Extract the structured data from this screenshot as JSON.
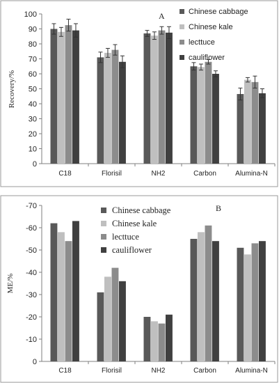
{
  "chart_data": [
    {
      "type": "bar",
      "panel_label": "A",
      "ylabel": "Recovery/%",
      "ylim": [
        0,
        100
      ],
      "yticks": [
        0,
        10,
        20,
        30,
        40,
        50,
        60,
        70,
        80,
        90,
        100
      ],
      "categories": [
        "C18",
        "Florisil",
        "NH2",
        "Carbon",
        "Alumina-N"
      ],
      "legend_position": "top-right",
      "error_bars": true,
      "series": [
        {
          "name": "Chinese cabbage",
          "color": "#595959",
          "values": [
            90,
            71,
            87,
            65,
            46.5
          ],
          "errors": [
            3.5,
            3.5,
            2,
            2.5,
            4
          ]
        },
        {
          "name": "Chinese kale",
          "color": "#bfbfbf",
          "values": [
            88,
            74,
            85.5,
            64.5,
            56
          ],
          "errors": [
            3,
            3,
            2.5,
            2,
            1.5
          ]
        },
        {
          "name": "lecttuce",
          "color": "#8c8c8c",
          "values": [
            92.5,
            76,
            89,
            68,
            54.5
          ],
          "errors": [
            4,
            3.5,
            2.5,
            1.5,
            4
          ]
        },
        {
          "name": "cauliflower",
          "color": "#404040",
          "values": [
            89,
            68,
            87.5,
            60,
            47
          ],
          "errors": [
            4.5,
            4,
            4,
            2,
            3
          ]
        }
      ]
    },
    {
      "type": "bar",
      "panel_label": "B",
      "ylabel": "ME/%",
      "ylim": [
        0,
        -70
      ],
      "yticks": [
        0,
        -10,
        -20,
        -30,
        -40,
        -50,
        -60,
        -70
      ],
      "categories": [
        "C18",
        "Florisil",
        "NH2",
        "Carbon",
        "Alumina-N"
      ],
      "legend_position": "top-left",
      "series": [
        {
          "name": "Chinese cabbage",
          "color": "#595959",
          "values": [
            -62,
            -31,
            -20,
            -55,
            -51
          ]
        },
        {
          "name": "Chinese kale",
          "color": "#bfbfbf",
          "values": [
            -58,
            -38,
            -18,
            -58,
            -48
          ]
        },
        {
          "name": "lecttuce",
          "color": "#8c8c8c",
          "values": [
            -54,
            -42,
            -17,
            -61,
            -53
          ]
        },
        {
          "name": "cauliflower",
          "color": "#404040",
          "values": [
            -63,
            -36,
            -21,
            -54,
            -54
          ]
        }
      ]
    }
  ]
}
